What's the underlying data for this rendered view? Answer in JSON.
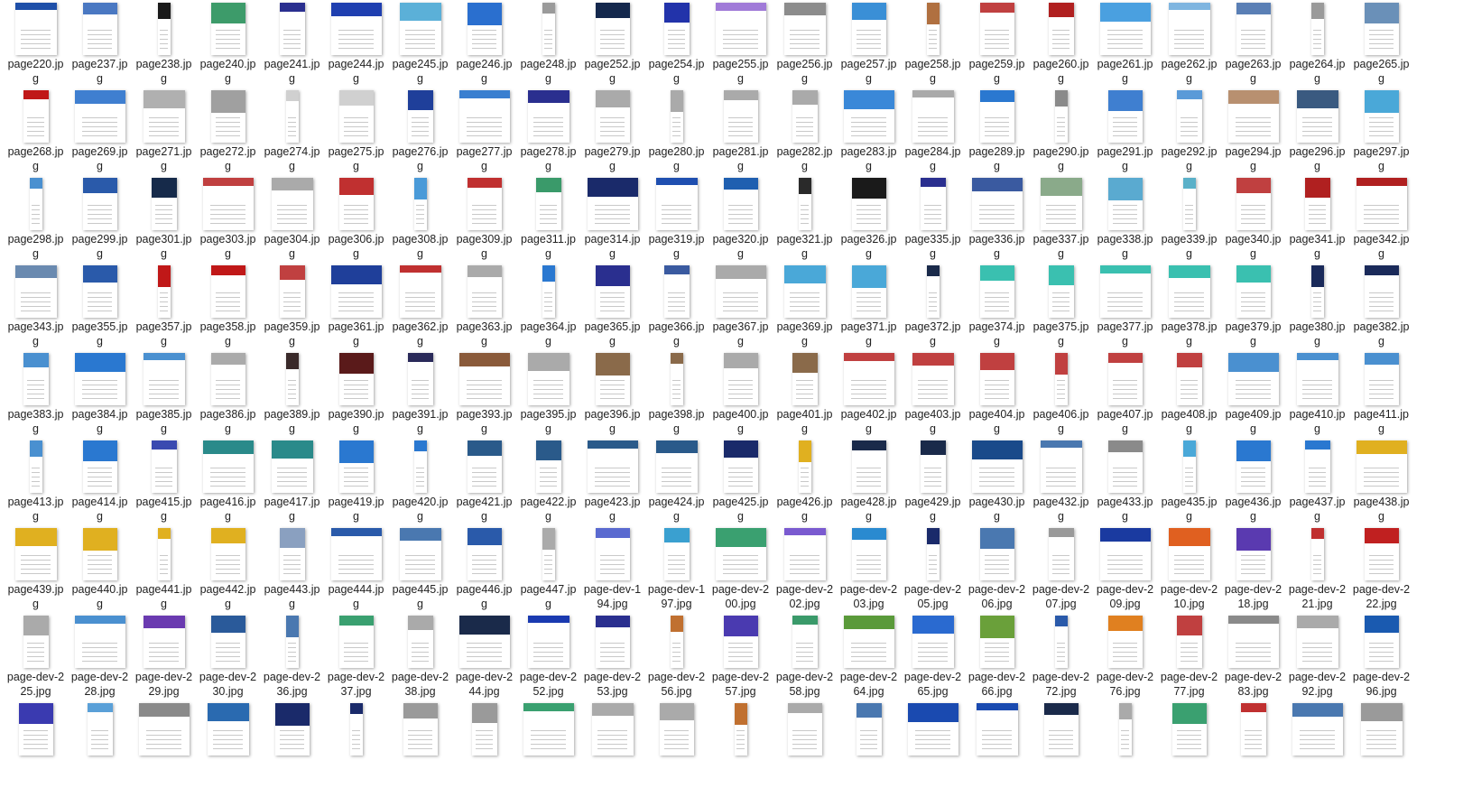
{
  "files": [
    {
      "label": "page220.jpg",
      "icon": "webpage-thumbnail-icon",
      "accent": "#1e4fa8"
    },
    {
      "label": "page237.jpg",
      "icon": "webpage-thumbnail-icon",
      "accent": "#4a78c2"
    },
    {
      "label": "page238.jpg",
      "icon": "webpage-thumbnail-icon",
      "accent": "#1a1a1a"
    },
    {
      "label": "page240.jpg",
      "icon": "webpage-thumbnail-icon",
      "accent": "#3d9b6a"
    },
    {
      "label": "page241.jpg",
      "icon": "webpage-thumbnail-icon",
      "accent": "#2a2f8f"
    },
    {
      "label": "page244.jpg",
      "icon": "webpage-thumbnail-icon",
      "accent": "#1f3fb0"
    },
    {
      "label": "page245.jpg",
      "icon": "webpage-thumbnail-icon",
      "accent": "#5bb0d8"
    },
    {
      "label": "page246.jpg",
      "icon": "webpage-thumbnail-icon",
      "accent": "#2a6fcf"
    },
    {
      "label": "page248.jpg",
      "icon": "webpage-thumbnail-icon",
      "accent": "#9a9a9a"
    },
    {
      "label": "page252.jpg",
      "icon": "webpage-thumbnail-icon",
      "accent": "#14284d"
    },
    {
      "label": "page254.jpg",
      "icon": "webpage-thumbnail-icon",
      "accent": "#2233aa"
    },
    {
      "label": "page255.jpg",
      "icon": "webpage-thumbnail-icon",
      "accent": "#a07ad8"
    },
    {
      "label": "page256.jpg",
      "icon": "webpage-thumbnail-icon",
      "accent": "#8c8c8c"
    },
    {
      "label": "page257.jpg",
      "icon": "webpage-thumbnail-icon",
      "accent": "#3a8fd6"
    },
    {
      "label": "page258.jpg",
      "icon": "webpage-thumbnail-icon",
      "accent": "#b07040"
    },
    {
      "label": "page259.jpg",
      "icon": "webpage-thumbnail-icon",
      "accent": "#c04040"
    },
    {
      "label": "page260.jpg",
      "icon": "webpage-thumbnail-icon",
      "accent": "#b02020"
    },
    {
      "label": "page261.jpg",
      "icon": "webpage-thumbnail-icon",
      "accent": "#4aa0e0"
    },
    {
      "label": "page262.jpg",
      "icon": "webpage-thumbnail-icon",
      "accent": "#7fb5e0"
    },
    {
      "label": "page263.jpg",
      "icon": "webpage-thumbnail-icon",
      "accent": "#5a7fb5"
    },
    {
      "label": "page264.jpg",
      "icon": "webpage-thumbnail-icon",
      "accent": "#9a9a9a"
    },
    {
      "label": "page265.jpg",
      "icon": "webpage-thumbnail-icon",
      "accent": "#6a90b8"
    },
    {
      "label": "page268.jpg",
      "icon": "webpage-thumbnail-icon",
      "accent": "#c01818"
    },
    {
      "label": "page269.jpg",
      "icon": "webpage-thumbnail-icon",
      "accent": "#3f7fd0"
    },
    {
      "label": "page271.jpg",
      "icon": "webpage-thumbnail-icon",
      "accent": "#b0b0b0"
    },
    {
      "label": "page272.jpg",
      "icon": "webpage-thumbnail-icon",
      "accent": "#a0a0a0"
    },
    {
      "label": "page274.jpg",
      "icon": "webpage-thumbnail-icon",
      "accent": "#d0d0d0"
    },
    {
      "label": "page275.jpg",
      "icon": "webpage-thumbnail-icon",
      "accent": "#d0d0d0"
    },
    {
      "label": "page276.jpg",
      "icon": "webpage-thumbnail-icon",
      "accent": "#1f3f9a"
    },
    {
      "label": "page277.jpg",
      "icon": "webpage-thumbnail-icon",
      "accent": "#3a7fd0"
    },
    {
      "label": "page278.jpg",
      "icon": "webpage-thumbnail-icon",
      "accent": "#2a2f8f"
    },
    {
      "label": "page279.jpg",
      "icon": "webpage-thumbnail-icon",
      "accent": "#aaaaaa"
    },
    {
      "label": "page280.jpg",
      "icon": "webpage-thumbnail-icon",
      "accent": "#aaaaaa"
    },
    {
      "label": "page281.jpg",
      "icon": "webpage-thumbnail-icon",
      "accent": "#aaaaaa"
    },
    {
      "label": "page282.jpg",
      "icon": "webpage-thumbnail-icon",
      "accent": "#aaaaaa"
    },
    {
      "label": "page283.jpg",
      "icon": "webpage-thumbnail-icon",
      "accent": "#3a88d8"
    },
    {
      "label": "page284.jpg",
      "icon": "webpage-thumbnail-icon",
      "accent": "#aaaaaa"
    },
    {
      "label": "page289.jpg",
      "icon": "webpage-thumbnail-icon",
      "accent": "#2a78d0"
    },
    {
      "label": "page290.jpg",
      "icon": "webpage-thumbnail-icon",
      "accent": "#8a8a8a"
    },
    {
      "label": "page291.jpg",
      "icon": "webpage-thumbnail-icon",
      "accent": "#3f7fd0"
    },
    {
      "label": "page292.jpg",
      "icon": "webpage-thumbnail-icon",
      "accent": "#5a9ad8"
    },
    {
      "label": "page294.jpg",
      "icon": "webpage-thumbnail-icon",
      "accent": "#b89070"
    },
    {
      "label": "page296.jpg",
      "icon": "webpage-thumbnail-icon",
      "accent": "#3a5a80"
    },
    {
      "label": "page297.jpg",
      "icon": "webpage-thumbnail-icon",
      "accent": "#4aa8d8"
    },
    {
      "label": "page298.jpg",
      "icon": "webpage-thumbnail-icon",
      "accent": "#4a90d0"
    },
    {
      "label": "page299.jpg",
      "icon": "webpage-thumbnail-icon",
      "accent": "#2a5aaa"
    },
    {
      "label": "page301.jpg",
      "icon": "webpage-thumbnail-icon",
      "accent": "#162a4a"
    },
    {
      "label": "page303.jpg",
      "icon": "webpage-thumbnail-icon",
      "accent": "#c04040"
    },
    {
      "label": "page304.jpg",
      "icon": "webpage-thumbnail-icon",
      "accent": "#aaaaaa"
    },
    {
      "label": "page306.jpg",
      "icon": "webpage-thumbnail-icon",
      "accent": "#c03030"
    },
    {
      "label": "page308.jpg",
      "icon": "webpage-thumbnail-icon",
      "accent": "#4a9ad8"
    },
    {
      "label": "page309.jpg",
      "icon": "webpage-thumbnail-icon",
      "accent": "#c03030"
    },
    {
      "label": "page311.jpg",
      "icon": "webpage-thumbnail-icon",
      "accent": "#3a9a6a"
    },
    {
      "label": "page314.jpg",
      "icon": "webpage-thumbnail-icon",
      "accent": "#1a2a6a"
    },
    {
      "label": "page319.jpg",
      "icon": "webpage-thumbnail-icon",
      "accent": "#1f4fb0"
    },
    {
      "label": "page320.jpg",
      "icon": "webpage-thumbnail-icon",
      "accent": "#1f5fb0"
    },
    {
      "label": "page321.jpg",
      "icon": "webpage-thumbnail-icon",
      "accent": "#2a2a2a"
    },
    {
      "label": "page326.jpg",
      "icon": "webpage-thumbnail-icon",
      "accent": "#1a1a1a"
    },
    {
      "label": "page335.jpg",
      "icon": "webpage-thumbnail-icon",
      "accent": "#2a2f8f"
    },
    {
      "label": "page336.jpg",
      "icon": "webpage-thumbnail-icon",
      "accent": "#3a5aa0"
    },
    {
      "label": "page337.jpg",
      "icon": "webpage-thumbnail-icon",
      "accent": "#8aaa8a"
    },
    {
      "label": "page338.jpg",
      "icon": "webpage-thumbnail-icon",
      "accent": "#5aaad0"
    },
    {
      "label": "page339.jpg",
      "icon": "webpage-thumbnail-icon",
      "accent": "#5ab0c8"
    },
    {
      "label": "page340.jpg",
      "icon": "webpage-thumbnail-icon",
      "accent": "#c04040"
    },
    {
      "label": "page341.jpg",
      "icon": "webpage-thumbnail-icon",
      "accent": "#b02020"
    },
    {
      "label": "page342.jpg",
      "icon": "webpage-thumbnail-icon",
      "accent": "#b02020"
    },
    {
      "label": "page343.jpg",
      "icon": "webpage-thumbnail-icon",
      "accent": "#6a8ab0"
    },
    {
      "label": "page355.jpg",
      "icon": "webpage-thumbnail-icon",
      "accent": "#2a5aaa"
    },
    {
      "label": "page357.jpg",
      "icon": "webpage-thumbnail-icon",
      "accent": "#c01818"
    },
    {
      "label": "page358.jpg",
      "icon": "webpage-thumbnail-icon",
      "accent": "#c01818"
    },
    {
      "label": "page359.jpg",
      "icon": "webpage-thumbnail-icon",
      "accent": "#c04040"
    },
    {
      "label": "page361.jpg",
      "icon": "webpage-thumbnail-icon",
      "accent": "#1f3f9a"
    },
    {
      "label": "page362.jpg",
      "icon": "webpage-thumbnail-icon",
      "accent": "#c03030"
    },
    {
      "label": "page363.jpg",
      "icon": "webpage-thumbnail-icon",
      "accent": "#aaaaaa"
    },
    {
      "label": "page364.jpg",
      "icon": "webpage-thumbnail-icon",
      "accent": "#2a78d0"
    },
    {
      "label": "page365.jpg",
      "icon": "webpage-thumbnail-icon",
      "accent": "#2a2f8f"
    },
    {
      "label": "page366.jpg",
      "icon": "webpage-thumbnail-icon",
      "accent": "#3a5aa0"
    },
    {
      "label": "page367.jpg",
      "icon": "webpage-thumbnail-icon",
      "accent": "#aaaaaa"
    },
    {
      "label": "page369.jpg",
      "icon": "webpage-thumbnail-icon",
      "accent": "#4aa8d8"
    },
    {
      "label": "page371.jpg",
      "icon": "webpage-thumbnail-icon",
      "accent": "#4aa8d8"
    },
    {
      "label": "page372.jpg",
      "icon": "webpage-thumbnail-icon",
      "accent": "#1a2a4a"
    },
    {
      "label": "page374.jpg",
      "icon": "webpage-thumbnail-icon",
      "accent": "#3ac0b0"
    },
    {
      "label": "page375.jpg",
      "icon": "webpage-thumbnail-icon",
      "accent": "#3ac0b0"
    },
    {
      "label": "page377.jpg",
      "icon": "webpage-thumbnail-icon",
      "accent": "#3ac0b0"
    },
    {
      "label": "page378.jpg",
      "icon": "webpage-thumbnail-icon",
      "accent": "#3ac0b0"
    },
    {
      "label": "page379.jpg",
      "icon": "webpage-thumbnail-icon",
      "accent": "#3ac0b0"
    },
    {
      "label": "page380.jpg",
      "icon": "webpage-thumbnail-icon",
      "accent": "#1a2a5a"
    },
    {
      "label": "page382.jpg",
      "icon": "webpage-thumbnail-icon",
      "accent": "#1a2a5a"
    },
    {
      "label": "page383.jpg",
      "icon": "webpage-thumbnail-icon",
      "accent": "#4a90d0"
    },
    {
      "label": "page384.jpg",
      "icon": "webpage-thumbnail-icon",
      "accent": "#2a78d0"
    },
    {
      "label": "page385.jpg",
      "icon": "webpage-thumbnail-icon",
      "accent": "#4a90d0"
    },
    {
      "label": "page386.jpg",
      "icon": "webpage-thumbnail-icon",
      "accent": "#aaaaaa"
    },
    {
      "label": "page389.jpg",
      "icon": "webpage-thumbnail-icon",
      "accent": "#3a2a2a"
    },
    {
      "label": "page390.jpg",
      "icon": "webpage-thumbnail-icon",
      "accent": "#5a1a1a"
    },
    {
      "label": "page391.jpg",
      "icon": "webpage-thumbnail-icon",
      "accent": "#2a2a5a"
    },
    {
      "label": "page393.jpg",
      "icon": "webpage-thumbnail-icon",
      "accent": "#8a5a3a"
    },
    {
      "label": "page395.jpg",
      "icon": "webpage-thumbnail-icon",
      "accent": "#aaaaaa"
    },
    {
      "label": "page396.jpg",
      "icon": "webpage-thumbnail-icon",
      "accent": "#8a6a4a"
    },
    {
      "label": "page398.jpg",
      "icon": "webpage-thumbnail-icon",
      "accent": "#8a6a4a"
    },
    {
      "label": "page400.jpg",
      "icon": "webpage-thumbnail-icon",
      "accent": "#aaaaaa"
    },
    {
      "label": "page401.jpg",
      "icon": "webpage-thumbnail-icon",
      "accent": "#8a6a4a"
    },
    {
      "label": "page402.jpg",
      "icon": "webpage-thumbnail-icon",
      "accent": "#c04040"
    },
    {
      "label": "page403.jpg",
      "icon": "webpage-thumbnail-icon",
      "accent": "#c04040"
    },
    {
      "label": "page404.jpg",
      "icon": "webpage-thumbnail-icon",
      "accent": "#c04040"
    },
    {
      "label": "page406.jpg",
      "icon": "webpage-thumbnail-icon",
      "accent": "#c04040"
    },
    {
      "label": "page407.jpg",
      "icon": "webpage-thumbnail-icon",
      "accent": "#c04040"
    },
    {
      "label": "page408.jpg",
      "icon": "webpage-thumbnail-icon",
      "accent": "#c04040"
    },
    {
      "label": "page409.jpg",
      "icon": "webpage-thumbnail-icon",
      "accent": "#4a90d0"
    },
    {
      "label": "page410.jpg",
      "icon": "webpage-thumbnail-icon",
      "accent": "#4a90d0"
    },
    {
      "label": "page411.jpg",
      "icon": "webpage-thumbnail-icon",
      "accent": "#4a90d0"
    },
    {
      "label": "page413.jpg",
      "icon": "webpage-thumbnail-icon",
      "accent": "#4a90d0"
    },
    {
      "label": "page414.jpg",
      "icon": "webpage-thumbnail-icon",
      "accent": "#2a78d0"
    },
    {
      "label": "page415.jpg",
      "icon": "webpage-thumbnail-icon",
      "accent": "#3a4ab0"
    },
    {
      "label": "page416.jpg",
      "icon": "webpage-thumbnail-icon",
      "accent": "#2a8a8a"
    },
    {
      "label": "page417.jpg",
      "icon": "webpage-thumbnail-icon",
      "accent": "#2a8a8a"
    },
    {
      "label": "page419.jpg",
      "icon": "webpage-thumbnail-icon",
      "accent": "#2a78d0"
    },
    {
      "label": "page420.jpg",
      "icon": "webpage-thumbnail-icon",
      "accent": "#2a78d0"
    },
    {
      "label": "page421.jpg",
      "icon": "webpage-thumbnail-icon",
      "accent": "#2a5a8a"
    },
    {
      "label": "page422.jpg",
      "icon": "webpage-thumbnail-icon",
      "accent": "#2a5a8a"
    },
    {
      "label": "page423.jpg",
      "icon": "webpage-thumbnail-icon",
      "accent": "#2a5a8a"
    },
    {
      "label": "page424.jpg",
      "icon": "webpage-thumbnail-icon",
      "accent": "#2a5a8a"
    },
    {
      "label": "page425.jpg",
      "icon": "webpage-thumbnail-icon",
      "accent": "#1a2a6a"
    },
    {
      "label": "page426.jpg",
      "icon": "webpage-thumbnail-icon",
      "accent": "#e0b020"
    },
    {
      "label": "page428.jpg",
      "icon": "webpage-thumbnail-icon",
      "accent": "#1a2a4a"
    },
    {
      "label": "page429.jpg",
      "icon": "webpage-thumbnail-icon",
      "accent": "#1a2a4a"
    },
    {
      "label": "page430.jpg",
      "icon": "webpage-thumbnail-icon",
      "accent": "#1a4a8a"
    },
    {
      "label": "page432.jpg",
      "icon": "webpage-thumbnail-icon",
      "accent": "#4a78b0"
    },
    {
      "label": "page433.jpg",
      "icon": "webpage-thumbnail-icon",
      "accent": "#8a8a8a"
    },
    {
      "label": "page435.jpg",
      "icon": "webpage-thumbnail-icon",
      "accent": "#4aa8d8"
    },
    {
      "label": "page436.jpg",
      "icon": "webpage-thumbnail-icon",
      "accent": "#2a78d0"
    },
    {
      "label": "page437.jpg",
      "icon": "webpage-thumbnail-icon",
      "accent": "#2a78d0"
    },
    {
      "label": "page438.jpg",
      "icon": "webpage-thumbnail-icon",
      "accent": "#e0b020"
    },
    {
      "label": "page439.jpg",
      "icon": "webpage-thumbnail-icon",
      "accent": "#e0b020"
    },
    {
      "label": "page440.jpg",
      "icon": "webpage-thumbnail-icon",
      "accent": "#e0b020"
    },
    {
      "label": "page441.jpg",
      "icon": "webpage-thumbnail-icon",
      "accent": "#e0b020"
    },
    {
      "label": "page442.jpg",
      "icon": "webpage-thumbnail-icon",
      "accent": "#e0b020"
    },
    {
      "label": "page443.jpg",
      "icon": "webpage-thumbnail-icon",
      "accent": "#8aa0c0"
    },
    {
      "label": "page444.jpg",
      "icon": "webpage-thumbnail-icon",
      "accent": "#2a5aaa"
    },
    {
      "label": "page445.jpg",
      "icon": "webpage-thumbnail-icon",
      "accent": "#4a78b0"
    },
    {
      "label": "page446.jpg",
      "icon": "webpage-thumbnail-icon",
      "accent": "#2a5aaa"
    },
    {
      "label": "page447.jpg",
      "icon": "webpage-thumbnail-icon",
      "accent": "#aaaaaa"
    },
    {
      "label": "page-dev-194.jpg",
      "icon": "webpage-thumbnail-icon",
      "accent": "#5a6ad0"
    },
    {
      "label": "page-dev-197.jpg",
      "icon": "webpage-thumbnail-icon",
      "accent": "#3aa0d0"
    },
    {
      "label": "page-dev-200.jpg",
      "icon": "webpage-thumbnail-icon",
      "accent": "#3aa070"
    },
    {
      "label": "page-dev-202.jpg",
      "icon": "webpage-thumbnail-icon",
      "accent": "#7a5ad0"
    },
    {
      "label": "page-dev-203.jpg",
      "icon": "webpage-thumbnail-icon",
      "accent": "#2a8ad0"
    },
    {
      "label": "page-dev-205.jpg",
      "icon": "webpage-thumbnail-icon",
      "accent": "#1a2a6a"
    },
    {
      "label": "page-dev-206.jpg",
      "icon": "webpage-thumbnail-icon",
      "accent": "#4a78b0"
    },
    {
      "label": "page-dev-207.jpg",
      "icon": "webpage-thumbnail-icon",
      "accent": "#9a9a9a"
    },
    {
      "label": "page-dev-209.jpg",
      "icon": "webpage-thumbnail-icon",
      "accent": "#1a3aa0"
    },
    {
      "label": "page-dev-210.jpg",
      "icon": "webpage-thumbnail-icon",
      "accent": "#e06020"
    },
    {
      "label": "page-dev-218.jpg",
      "icon": "webpage-thumbnail-icon",
      "accent": "#5a3ab0"
    },
    {
      "label": "page-dev-221.jpg",
      "icon": "webpage-thumbnail-icon",
      "accent": "#c03030"
    },
    {
      "label": "page-dev-222.jpg",
      "icon": "webpage-thumbnail-icon",
      "accent": "#c02020"
    },
    {
      "label": "page-dev-225.jpg",
      "icon": "webpage-thumbnail-icon",
      "accent": "#aaaaaa"
    },
    {
      "label": "page-dev-228.jpg",
      "icon": "webpage-thumbnail-icon",
      "accent": "#4a90d0"
    },
    {
      "label": "page-dev-229.jpg",
      "icon": "webpage-thumbnail-icon",
      "accent": "#6a3ab0"
    },
    {
      "label": "page-dev-230.jpg",
      "icon": "webpage-thumbnail-icon",
      "accent": "#2a5a9a"
    },
    {
      "label": "page-dev-236.jpg",
      "icon": "webpage-thumbnail-icon",
      "accent": "#4a78b0"
    },
    {
      "label": "page-dev-237.jpg",
      "icon": "webpage-thumbnail-icon",
      "accent": "#3aa070"
    },
    {
      "label": "page-dev-238.jpg",
      "icon": "webpage-thumbnail-icon",
      "accent": "#aaaaaa"
    },
    {
      "label": "page-dev-244.jpg",
      "icon": "webpage-thumbnail-icon",
      "accent": "#1a2a4a"
    },
    {
      "label": "page-dev-252.jpg",
      "icon": "webpage-thumbnail-icon",
      "accent": "#1a3ab0"
    },
    {
      "label": "page-dev-253.jpg",
      "icon": "webpage-thumbnail-icon",
      "accent": "#2a2f8f"
    },
    {
      "label": "page-dev-256.jpg",
      "icon": "webpage-thumbnail-icon",
      "accent": "#c07030"
    },
    {
      "label": "page-dev-257.jpg",
      "icon": "webpage-thumbnail-icon",
      "accent": "#4a3ab0"
    },
    {
      "label": "page-dev-258.jpg",
      "icon": "webpage-thumbnail-icon",
      "accent": "#3a9a6a"
    },
    {
      "label": "page-dev-264.jpg",
      "icon": "webpage-thumbnail-icon",
      "accent": "#5a9a3a"
    },
    {
      "label": "page-dev-265.jpg",
      "icon": "webpage-thumbnail-icon",
      "accent": "#2a6ad0"
    },
    {
      "label": "page-dev-266.jpg",
      "icon": "webpage-thumbnail-icon",
      "accent": "#6aa03a"
    },
    {
      "label": "page-dev-272.jpg",
      "icon": "webpage-thumbnail-icon",
      "accent": "#2a5aaa"
    },
    {
      "label": "page-dev-276.jpg",
      "icon": "webpage-thumbnail-icon",
      "accent": "#e08020"
    },
    {
      "label": "page-dev-277.jpg",
      "icon": "webpage-thumbnail-icon",
      "accent": "#c04040"
    },
    {
      "label": "page-dev-283.jpg",
      "icon": "webpage-thumbnail-icon",
      "accent": "#8a8a8a"
    },
    {
      "label": "page-dev-292.jpg",
      "icon": "webpage-thumbnail-icon",
      "accent": "#aaaaaa"
    },
    {
      "label": "page-dev-296.jpg",
      "icon": "webpage-thumbnail-icon",
      "accent": "#1a5ab0"
    }
  ],
  "partial_row_accents": [
    "#3a3ab0",
    "#5aa0d8",
    "#8a8a8a",
    "#2a6ab0",
    "#1a2a6a",
    "#1a2a6a",
    "#9a9a9a",
    "#9a9a9a",
    "#3aa070",
    "#aaaaaa",
    "#aaaaaa",
    "#c07030",
    "#aaaaaa",
    "#4a78b0",
    "#1a4ab0",
    "#1a4ab0",
    "#1a2a4a",
    "#aaaaaa",
    "#3aa070",
    "#c03030",
    "#4a78b0",
    "#9a9a9a"
  ]
}
